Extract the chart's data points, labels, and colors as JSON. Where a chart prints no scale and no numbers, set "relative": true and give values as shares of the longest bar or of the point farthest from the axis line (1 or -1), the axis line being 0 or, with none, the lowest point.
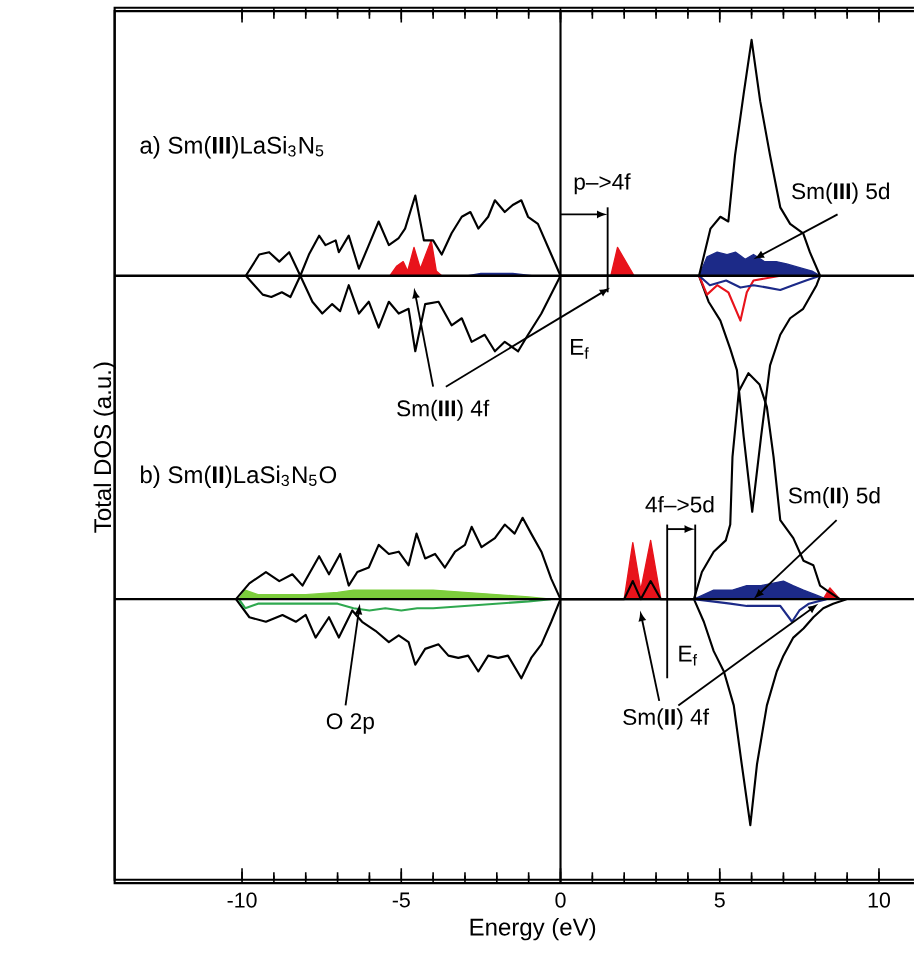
{
  "chart_data": [
    {
      "type": "line",
      "relative": true,
      "title": "a) Sm(**III**)LaSi$_{3}$N$_{5}$",
      "xlim": [
        -14,
        12.25
      ],
      "xticks": [
        -10,
        -5,
        0,
        5,
        10
      ],
      "tick_labels": false,
      "ref_lines": [
        {
          "axis": "y",
          "value": 0
        }
      ],
      "annotations": [
        "p–>4f",
        "E$_{f}$",
        "Sm(**III**) 4f",
        "Sm(**III**) 5d"
      ],
      "series": [
        {
          "type": "area",
          "color": "#e8131b",
          "x": [
            -5.36,
            -5.15,
            -4.94,
            -4.8,
            -4.6,
            -4.4,
            -4.06,
            -3.9,
            -3.73,
            1.58,
            1.79,
            2.31
          ],
          "values": [
            0,
            0.04,
            0.06,
            0.02,
            0.12,
            0.03,
            0.15,
            0.02,
            0,
            0,
            0.12,
            0
          ]
        },
        {
          "type": "area",
          "color": "#1c2a88",
          "x": [
            -2.9,
            -2.5,
            -1.5,
            -0.9,
            4.35,
            4.6,
            4.92,
            5.23,
            5.5,
            5.8,
            6.06,
            6.4,
            6.77,
            7.1,
            7.62,
            7.9,
            8.15
          ],
          "values": [
            0,
            0.01,
            0.01,
            0,
            0,
            0.08,
            0.1,
            0.09,
            0.1,
            0.07,
            0.09,
            0.06,
            0.06,
            0.05,
            0.03,
            0.02,
            0
          ]
        },
        {
          "color": "#000000",
          "x": [
            -9.88,
            -9.46,
            -9.15,
            -8.83,
            -8.52,
            -8.17,
            -7.9,
            -7.58,
            -7.38,
            -7.06,
            -6.96,
            -6.65,
            -6.33,
            -6.02,
            -5.71,
            -5.39,
            -5.08,
            -4.88,
            -4.56,
            -4.29,
            -4.0,
            -3.73,
            -3.42,
            -3.1,
            -2.83,
            -2.58,
            -2.27,
            -2.06,
            -1.75,
            -1.5,
            -1.23,
            -1.02,
            -0.71,
            -0.29,
            0,
            4.35,
            4.71,
            5.02,
            5.27,
            5.48,
            5.75,
            6.0,
            6.27,
            6.58,
            6.9,
            7.21,
            7.62,
            7.83,
            8.15
          ],
          "values": [
            0,
            0.09,
            0.1,
            0.06,
            0.1,
            0,
            0.09,
            0.17,
            0.13,
            0.15,
            0.1,
            0.17,
            0.03,
            0.13,
            0.23,
            0.13,
            0.16,
            0.2,
            0.34,
            0.15,
            0.15,
            0.09,
            0.18,
            0.25,
            0.27,
            0.2,
            0.25,
            0.32,
            0.27,
            0.3,
            0.32,
            0.25,
            0.22,
            0.09,
            0,
            0,
            0.2,
            0.25,
            0.23,
            0.51,
            0.77,
            1,
            0.74,
            0.51,
            0.29,
            0.22,
            0.18,
            0.1,
            0
          ]
        },
        {
          "color": "#000000",
          "x": [
            -9.88,
            -9.35,
            -9.08,
            -8.75,
            -8.48,
            -8.17,
            -7.79,
            -7.48,
            -7.17,
            -6.92,
            -6.65,
            -6.33,
            -6.02,
            -5.71,
            -5.39,
            -5.08,
            -4.77,
            -4.56,
            -4.25,
            -3.83,
            -3.42,
            -3.1,
            -2.79,
            -2.38,
            -2.06,
            -1.75,
            -1.33,
            -1.02,
            -0.6,
            0,
            4.35,
            4.65,
            5.02,
            5.33,
            5.54,
            5.75,
            6.02,
            6.3,
            6.58,
            6.9,
            7.21,
            7.62,
            8.04,
            8.15
          ],
          "values": [
            0,
            -0.08,
            -0.09,
            -0.07,
            -0.09,
            0,
            -0.11,
            -0.16,
            -0.12,
            -0.15,
            -0.04,
            -0.16,
            -0.11,
            -0.22,
            -0.11,
            -0.16,
            -0.14,
            -0.32,
            -0.12,
            -0.11,
            -0.21,
            -0.18,
            -0.28,
            -0.25,
            -0.32,
            -0.28,
            -0.32,
            -0.25,
            -0.16,
            0,
            0,
            -0.11,
            -0.19,
            -0.31,
            -0.4,
            -0.68,
            -1,
            -0.68,
            -0.38,
            -0.25,
            -0.18,
            -0.14,
            -0.04,
            0
          ]
        },
        {
          "color": "#e8131b",
          "x": [
            4.35,
            4.6,
            4.92,
            5.27,
            5.65,
            5.85,
            6.06,
            6.9
          ],
          "values": [
            0,
            -0.08,
            -0.04,
            -0.07,
            -0.19,
            -0.07,
            -0.02,
            0
          ]
        },
        {
          "color": "#1c2a88",
          "x": [
            4.35,
            4.69,
            5.2,
            5.65,
            6.06,
            6.5,
            6.9,
            7.3,
            7.71,
            8.15
          ],
          "values": [
            0,
            -0.04,
            -0.02,
            -0.05,
            -0.04,
            -0.05,
            -0.06,
            -0.04,
            -0.02,
            0
          ]
        }
      ]
    },
    {
      "type": "line",
      "relative": true,
      "title": "b) Sm(**II**)LaSi$_{3}$N$_{5}$O",
      "xlabel": "Energy (eV)",
      "ylabel": "Total DOS (a.u.)",
      "xlim": [
        -14,
        12.25
      ],
      "xticks": [
        -10,
        -5,
        0,
        5,
        10
      ],
      "tick_labels": "x",
      "ref_lines": [
        {
          "axis": "y",
          "value": 0
        },
        {
          "axis": "x",
          "value": 0
        }
      ],
      "annotations": [
        "4f–>5d",
        "E$_{f}$",
        "Sm(**II**) 5d",
        "Sm(**II**) 4f",
        "O 2p"
      ],
      "series": [
        {
          "type": "area",
          "color": "#e8131b",
          "x": [
            2.0,
            2.27,
            2.52,
            2.83,
            3.15,
            8.25,
            8.46,
            8.77
          ],
          "values": [
            0,
            0.25,
            0.04,
            0.26,
            0,
            0,
            0.05,
            0
          ]
        },
        {
          "type": "area",
          "color": "#1c2a88",
          "x": [
            4.19,
            4.81,
            5.4,
            5.85,
            6.3,
            7.0,
            7.3,
            7.63,
            8.0,
            8.35
          ],
          "values": [
            0,
            0.04,
            0.04,
            0.06,
            0.06,
            0.08,
            0.06,
            0.04,
            0.02,
            0
          ]
        },
        {
          "type": "area",
          "color": "#7ccd3c",
          "x": [
            -10.1,
            -9.9,
            -9.5,
            -8,
            -7,
            -6.5,
            -6,
            -5.5,
            -5,
            -4.5,
            -4,
            -3,
            -2,
            -1,
            -0.3
          ],
          "values": [
            0,
            0.04,
            0.02,
            0.02,
            0.03,
            0.04,
            0.04,
            0.04,
            0.04,
            0.04,
            0.04,
            0.03,
            0.02,
            0.01,
            0
          ]
        },
        {
          "color": "#000000",
          "x": [
            -10.19,
            -9.77,
            -9.25,
            -8.83,
            -8.42,
            -8.1,
            -7.58,
            -7.27,
            -6.92,
            -6.65,
            -6.38,
            -6.02,
            -5.71,
            -5.39,
            -5.08,
            -4.77,
            -4.52,
            -4.25,
            -3.94,
            -3.63,
            -3.31,
            -3.0,
            -2.79,
            -2.48,
            -2.06,
            -1.75,
            -1.44,
            -1.19,
            -0.92,
            -0.6,
            -0.29,
            0,
            2.0,
            2.27,
            2.52,
            2.83,
            3.15,
            4.19,
            4.44,
            4.81,
            5.19,
            5.33,
            5.4,
            5.6,
            5.9,
            6.25,
            6.48,
            6.69,
            6.9,
            7.31,
            7.63,
            7.94,
            8.15,
            8.35,
            8.77
          ],
          "values": [
            0,
            0.07,
            0.12,
            0.08,
            0.11,
            0.06,
            0.19,
            0.11,
            0.2,
            0.06,
            0.12,
            0.14,
            0.24,
            0.2,
            0.21,
            0.15,
            0.29,
            0.18,
            0.2,
            0.14,
            0.21,
            0.24,
            0.32,
            0.23,
            0.27,
            0.33,
            0.29,
            0.36,
            0.29,
            0.21,
            0.09,
            0,
            0,
            0.08,
            0,
            0.08,
            0,
            0,
            0.12,
            0.21,
            0.26,
            0.33,
            0.63,
            0.92,
            1,
            0.95,
            0.85,
            0.63,
            0.35,
            0.27,
            0.17,
            0.15,
            0.06,
            0.04,
            0
          ]
        },
        {
          "color": "#000000",
          "x": [
            -10.19,
            -9.77,
            -9.25,
            -8.73,
            -8.31,
            -8.0,
            -7.69,
            -7.27,
            -6.96,
            -6.54,
            -6.23,
            -5.81,
            -5.39,
            -5.08,
            -4.77,
            -4.56,
            -4.25,
            -3.83,
            -3.52,
            -3.21,
            -2.9,
            -2.58,
            -2.27,
            -1.96,
            -1.65,
            -1.23,
            -0.92,
            -0.6,
            -0.29,
            0,
            4.19,
            4.5,
            4.81,
            5.13,
            5.44,
            5.69,
            5.96,
            6.17,
            6.48,
            6.79,
            7.0,
            7.31,
            7.63,
            7.94,
            8.25,
            8.56,
            8.98
          ],
          "values": [
            0,
            -0.08,
            -0.1,
            -0.07,
            -0.1,
            -0.07,
            -0.17,
            -0.08,
            -0.17,
            -0.05,
            -0.1,
            -0.14,
            -0.19,
            -0.16,
            -0.19,
            -0.29,
            -0.22,
            -0.2,
            -0.25,
            -0.26,
            -0.25,
            -0.32,
            -0.25,
            -0.26,
            -0.25,
            -0.35,
            -0.26,
            -0.2,
            -0.1,
            0,
            0,
            -0.1,
            -0.23,
            -0.32,
            -0.47,
            -0.73,
            -1,
            -0.73,
            -0.47,
            -0.32,
            -0.25,
            -0.17,
            -0.13,
            -0.08,
            -0.04,
            -0.02,
            0
          ]
        },
        {
          "color": "#1c2a88",
          "x": [
            4.19,
            5.33,
            5.85,
            6.9,
            7.27,
            7.5,
            7.8,
            8.35
          ],
          "values": [
            0,
            -0.02,
            -0.03,
            -0.03,
            -0.1,
            -0.05,
            -0.02,
            0
          ]
        },
        {
          "color": "#2fa84f",
          "x": [
            -10.1,
            -9.9,
            -9.5,
            -7,
            -6.5,
            -6,
            -5.5,
            -5,
            -4.5,
            -4,
            -3,
            -2,
            -1,
            -0.3
          ],
          "values": [
            0,
            -0.04,
            -0.02,
            -0.02,
            -0.04,
            -0.05,
            -0.04,
            -0.05,
            -0.04,
            -0.04,
            -0.03,
            -0.02,
            -0.01,
            0
          ]
        }
      ]
    }
  ]
}
